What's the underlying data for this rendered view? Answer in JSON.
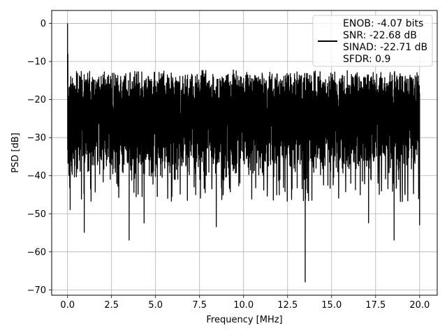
{
  "chart_data": {
    "type": "line",
    "xlabel": "Frequency [MHz]",
    "ylabel": "PSD [dB]",
    "xlim": [
      -0.9,
      21.0
    ],
    "ylim": [
      -71.4,
      3.4
    ],
    "xticks": [
      0.0,
      2.5,
      5.0,
      7.5,
      10.0,
      12.5,
      15.0,
      17.5,
      20.0
    ],
    "xtick_labels": [
      "0.0",
      "2.5",
      "5.0",
      "7.5",
      "10.0",
      "12.5",
      "15.0",
      "17.5",
      "20.0"
    ],
    "yticks": [
      0,
      -10,
      -20,
      -30,
      -40,
      -50,
      -60,
      -70
    ],
    "ytick_labels": [
      "0",
      "−10",
      "−20",
      "−30",
      "−40",
      "−50",
      "−60",
      "−70"
    ],
    "grid": true,
    "legend_position": "top-right",
    "series": [
      {
        "color": "#000000",
        "x_range": [
          0.0,
          20.0
        ],
        "noise_band": {
          "upper_envelope_db": [
            -14,
            -12
          ],
          "lower_envelope_db": [
            -35,
            -42
          ],
          "median_db": -24
        },
        "peaks": [
          {
            "x": 0.0,
            "y": 0.0
          },
          {
            "x": 0.02,
            "y": -8.0
          }
        ],
        "notable_minima": [
          {
            "x": 0.15,
            "y": -49.0
          },
          {
            "x": 0.95,
            "y": -55.0
          },
          {
            "x": 3.5,
            "y": -57.0
          },
          {
            "x": 4.35,
            "y": -52.5
          },
          {
            "x": 8.45,
            "y": -53.5
          },
          {
            "x": 13.5,
            "y": -68.0
          },
          {
            "x": 17.1,
            "y": -52.5
          },
          {
            "x": 18.55,
            "y": -57.0
          },
          {
            "x": 20.0,
            "y": -53.0
          }
        ]
      }
    ],
    "legend_lines": [
      "ENOB: -4.07 bits",
      "SNR: -22.68 dB",
      "SINAD: -22.71 dB",
      "SFDR: 0.9"
    ]
  }
}
